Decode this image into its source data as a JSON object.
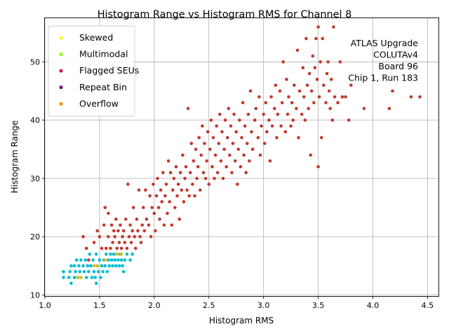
{
  "chart_data": {
    "type": "scatter",
    "title": "Histogram Range vs Histogram RMS for Channel 8",
    "xlabel": "Histogram RMS",
    "ylabel": "Histogram Range",
    "xlim": [
      1.0,
      4.6
    ],
    "ylim": [
      9.8,
      57.5
    ],
    "xticks": [
      "1.0",
      "1.5",
      "2.0",
      "2.5",
      "3.0",
      "3.5",
      "4.0",
      "4.5"
    ],
    "yticks": [
      "10",
      "20",
      "30",
      "40",
      "50"
    ],
    "grid": true,
    "legend_position": "top-left",
    "annotation": [
      "ATLAS Upgrade",
      "COLUTAv4",
      "Board 96",
      "Chip 1, Run 183"
    ],
    "legend": [
      {
        "name": "Skewed",
        "color": "#ffff00"
      },
      {
        "name": "Multimodal",
        "color": "#7fff00"
      },
      {
        "name": "Flagged SEUs",
        "color": "#dc143c"
      },
      {
        "name": "Repeat Bin",
        "color": "#800080"
      },
      {
        "name": "Overflow",
        "color": "#ff8c00"
      }
    ],
    "series": [
      {
        "name": "",
        "color": "#00bcd4",
        "points": [
          [
            1.17,
            13
          ],
          [
            1.17,
            14
          ],
          [
            1.22,
            13
          ],
          [
            1.23,
            14
          ],
          [
            1.24,
            12
          ],
          [
            1.24,
            15
          ],
          [
            1.27,
            13
          ],
          [
            1.27,
            15
          ],
          [
            1.28,
            14
          ],
          [
            1.29,
            16
          ],
          [
            1.3,
            13
          ],
          [
            1.31,
            15
          ],
          [
            1.32,
            14
          ],
          [
            1.33,
            16
          ],
          [
            1.33,
            13
          ],
          [
            1.35,
            15
          ],
          [
            1.36,
            14
          ],
          [
            1.37,
            16
          ],
          [
            1.38,
            13
          ],
          [
            1.39,
            15
          ],
          [
            1.4,
            14
          ],
          [
            1.41,
            17
          ],
          [
            1.42,
            15
          ],
          [
            1.43,
            13
          ],
          [
            1.44,
            16
          ],
          [
            1.45,
            14
          ],
          [
            1.46,
            13
          ],
          [
            1.47,
            17
          ],
          [
            1.47,
            12
          ],
          [
            1.48,
            15
          ],
          [
            1.49,
            14
          ],
          [
            1.5,
            16
          ],
          [
            1.51,
            13
          ],
          [
            1.52,
            15
          ],
          [
            1.53,
            14
          ],
          [
            1.54,
            16
          ],
          [
            1.55,
            15
          ],
          [
            1.56,
            17
          ],
          [
            1.57,
            14
          ],
          [
            1.58,
            16
          ],
          [
            1.59,
            15
          ],
          [
            1.6,
            17
          ],
          [
            1.61,
            16
          ],
          [
            1.62,
            15
          ],
          [
            1.63,
            17
          ],
          [
            1.64,
            16
          ],
          [
            1.65,
            15
          ],
          [
            1.66,
            17
          ],
          [
            1.67,
            16
          ],
          [
            1.68,
            15
          ],
          [
            1.69,
            17
          ],
          [
            1.7,
            16
          ],
          [
            1.71,
            15
          ],
          [
            1.72,
            14
          ],
          [
            1.73,
            16
          ],
          [
            1.75,
            17
          ],
          [
            1.78,
            16
          ],
          [
            1.8,
            17
          ]
        ]
      },
      {
        "name": "",
        "color": "#d4c01a",
        "points": [
          [
            1.3,
            13
          ],
          [
            1.33,
            13
          ],
          [
            1.45,
            15
          ],
          [
            1.48,
            15
          ],
          [
            1.55,
            16
          ],
          [
            1.66,
            17
          ],
          [
            1.7,
            17
          ]
        ]
      },
      {
        "name": "",
        "color": "#c0392b",
        "points": [
          [
            1.35,
            20
          ],
          [
            1.38,
            18
          ],
          [
            1.4,
            16
          ],
          [
            1.45,
            19
          ],
          [
            1.48,
            21
          ],
          [
            1.5,
            20
          ],
          [
            1.52,
            18
          ],
          [
            1.54,
            22
          ],
          [
            1.55,
            25
          ],
          [
            1.56,
            18
          ],
          [
            1.58,
            20
          ],
          [
            1.58,
            24
          ],
          [
            1.6,
            18
          ],
          [
            1.61,
            22
          ],
          [
            1.62,
            19
          ],
          [
            1.63,
            21
          ],
          [
            1.64,
            20
          ],
          [
            1.65,
            23
          ],
          [
            1.66,
            18
          ],
          [
            1.67,
            21
          ],
          [
            1.68,
            19
          ],
          [
            1.69,
            22
          ],
          [
            1.7,
            18
          ],
          [
            1.71,
            20
          ],
          [
            1.72,
            21
          ],
          [
            1.73,
            19
          ],
          [
            1.74,
            23
          ],
          [
            1.75,
            18
          ],
          [
            1.76,
            29
          ],
          [
            1.77,
            20
          ],
          [
            1.78,
            22
          ],
          [
            1.79,
            19
          ],
          [
            1.8,
            21
          ],
          [
            1.81,
            25
          ],
          [
            1.82,
            20
          ],
          [
            1.83,
            18
          ],
          [
            1.84,
            23
          ],
          [
            1.85,
            21
          ],
          [
            1.86,
            28
          ],
          [
            1.87,
            20
          ],
          [
            1.88,
            19
          ],
          [
            1.89,
            22
          ],
          [
            1.9,
            25
          ],
          [
            1.91,
            21
          ],
          [
            1.92,
            28
          ],
          [
            1.93,
            23
          ],
          [
            1.95,
            22
          ],
          [
            1.96,
            27
          ],
          [
            1.97,
            20
          ],
          [
            1.98,
            25
          ],
          [
            1.99,
            29
          ],
          [
            2.0,
            24
          ],
          [
            2.01,
            21
          ],
          [
            2.02,
            27
          ],
          [
            2.03,
            30
          ],
          [
            2.04,
            25
          ],
          [
            2.05,
            23
          ],
          [
            2.06,
            28
          ],
          [
            2.07,
            26
          ],
          [
            2.08,
            31
          ],
          [
            2.09,
            22
          ],
          [
            2.1,
            27
          ],
          [
            2.11,
            29
          ],
          [
            2.12,
            24
          ],
          [
            2.13,
            33
          ],
          [
            2.14,
            26
          ],
          [
            2.15,
            31
          ],
          [
            2.16,
            22
          ],
          [
            2.17,
            28
          ],
          [
            2.18,
            30
          ],
          [
            2.19,
            25
          ],
          [
            2.2,
            32
          ],
          [
            2.21,
            27
          ],
          [
            2.22,
            29
          ],
          [
            2.23,
            23
          ],
          [
            2.24,
            31
          ],
          [
            2.25,
            28
          ],
          [
            2.26,
            34
          ],
          [
            2.27,
            26
          ],
          [
            2.28,
            30
          ],
          [
            2.29,
            32
          ],
          [
            2.3,
            28
          ],
          [
            2.31,
            42
          ],
          [
            2.32,
            27
          ],
          [
            2.33,
            31
          ],
          [
            2.34,
            36
          ],
          [
            2.35,
            29
          ],
          [
            2.36,
            33
          ],
          [
            2.37,
            27
          ],
          [
            2.38,
            35
          ],
          [
            2.39,
            30
          ],
          [
            2.4,
            32
          ],
          [
            2.41,
            37
          ],
          [
            2.42,
            28
          ],
          [
            2.43,
            34
          ],
          [
            2.44,
            39
          ],
          [
            2.45,
            31
          ],
          [
            2.46,
            36
          ],
          [
            2.47,
            30
          ],
          [
            2.48,
            33
          ],
          [
            2.49,
            38
          ],
          [
            2.5,
            29
          ],
          [
            2.51,
            35
          ],
          [
            2.52,
            40
          ],
          [
            2.53,
            32
          ],
          [
            2.54,
            37
          ],
          [
            2.55,
            30
          ],
          [
            2.56,
            34
          ],
          [
            2.57,
            39
          ],
          [
            2.58,
            31
          ],
          [
            2.59,
            36
          ],
          [
            2.6,
            41
          ],
          [
            2.61,
            33
          ],
          [
            2.62,
            38
          ],
          [
            2.63,
            30
          ],
          [
            2.64,
            35
          ],
          [
            2.65,
            40
          ],
          [
            2.66,
            32
          ],
          [
            2.67,
            37
          ],
          [
            2.68,
            42
          ],
          [
            2.69,
            34
          ],
          [
            2.7,
            39
          ],
          [
            2.71,
            31
          ],
          [
            2.72,
            36
          ],
          [
            2.73,
            41
          ],
          [
            2.74,
            33
          ],
          [
            2.75,
            38
          ],
          [
            2.76,
            29
          ],
          [
            2.77,
            35
          ],
          [
            2.78,
            40
          ],
          [
            2.79,
            32
          ],
          [
            2.8,
            37
          ],
          [
            2.81,
            43
          ],
          [
            2.82,
            34
          ],
          [
            2.83,
            39
          ],
          [
            2.84,
            31
          ],
          [
            2.85,
            36
          ],
          [
            2.86,
            41
          ],
          [
            2.87,
            33
          ],
          [
            2.88,
            45
          ],
          [
            2.89,
            38
          ],
          [
            2.9,
            35
          ],
          [
            2.92,
            40
          ],
          [
            2.93,
            42
          ],
          [
            2.95,
            37
          ],
          [
            2.96,
            44
          ],
          [
            2.97,
            34
          ],
          [
            2.98,
            39
          ],
          [
            3.0,
            41
          ],
          [
            3.01,
            36
          ],
          [
            3.02,
            43
          ],
          [
            3.03,
            38
          ],
          [
            3.05,
            40
          ],
          [
            3.06,
            33
          ],
          [
            3.07,
            44
          ],
          [
            3.08,
            39
          ],
          [
            3.1,
            42
          ],
          [
            3.11,
            46
          ],
          [
            3.12,
            37
          ],
          [
            3.13,
            41
          ],
          [
            3.15,
            45
          ],
          [
            3.16,
            39
          ],
          [
            3.17,
            43
          ],
          [
            3.18,
            50
          ],
          [
            3.2,
            38
          ],
          [
            3.21,
            47
          ],
          [
            3.22,
            41
          ],
          [
            3.23,
            44
          ],
          [
            3.25,
            39
          ],
          [
            3.26,
            43
          ],
          [
            3.27,
            40
          ],
          [
            3.28,
            46
          ],
          [
            3.3,
            42
          ],
          [
            3.31,
            52
          ],
          [
            3.32,
            37
          ],
          [
            3.33,
            45
          ],
          [
            3.35,
            41
          ],
          [
            3.36,
            49
          ],
          [
            3.37,
            44
          ],
          [
            3.38,
            40
          ],
          [
            3.39,
            54
          ],
          [
            3.4,
            46
          ],
          [
            3.41,
            42
          ],
          [
            3.42,
            48
          ],
          [
            3.43,
            34
          ],
          [
            3.44,
            45
          ],
          [
            3.45,
            51
          ],
          [
            3.46,
            43
          ],
          [
            3.47,
            49
          ],
          [
            3.48,
            54
          ],
          [
            3.49,
            47
          ],
          [
            3.5,
            56
          ],
          [
            3.5,
            32
          ],
          [
            3.51,
            44
          ],
          [
            3.52,
            50
          ],
          [
            3.53,
            37
          ],
          [
            3.54,
            54
          ],
          [
            3.55,
            46
          ],
          [
            3.57,
            43
          ],
          [
            3.58,
            48
          ],
          [
            3.59,
            50
          ],
          [
            3.6,
            45
          ],
          [
            3.61,
            42
          ],
          [
            3.62,
            47
          ],
          [
            3.63,
            40
          ],
          [
            3.64,
            56
          ],
          [
            3.65,
            44
          ],
          [
            3.68,
            43
          ],
          [
            3.7,
            50
          ],
          [
            3.72,
            44
          ],
          [
            3.75,
            44
          ],
          [
            3.78,
            40
          ],
          [
            3.8,
            46
          ],
          [
            3.92,
            42
          ],
          [
            4.15,
            42
          ],
          [
            4.18,
            45
          ],
          [
            4.35,
            44
          ],
          [
            4.43,
            44
          ]
        ]
      }
    ]
  }
}
